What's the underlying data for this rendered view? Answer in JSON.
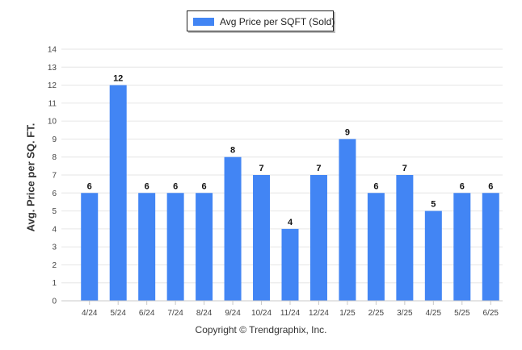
{
  "chart_data": {
    "type": "bar",
    "categories": [
      "4/24",
      "5/24",
      "6/24",
      "7/24",
      "8/24",
      "9/24",
      "10/24",
      "11/24",
      "12/24",
      "1/25",
      "2/25",
      "3/25",
      "4/25",
      "5/25",
      "6/25"
    ],
    "series": [
      {
        "name": "Avg Price per SQFT (Sold)",
        "values": [
          6,
          12,
          6,
          6,
          6,
          8,
          7,
          4,
          7,
          9,
          6,
          7,
          5,
          6,
          6
        ],
        "color": "#4285f4"
      }
    ],
    "xlabel": "",
    "ylabel": "Avg. Price per SQ. FT.",
    "ylim": [
      0,
      14
    ],
    "yticks": [
      0,
      1,
      2,
      3,
      4,
      5,
      6,
      7,
      8,
      9,
      10,
      11,
      12,
      13,
      14
    ],
    "grid": true,
    "legend_position": "top-center",
    "data_labels": true
  },
  "footer": {
    "copyright": "Copyright © Trendgraphix, Inc."
  }
}
